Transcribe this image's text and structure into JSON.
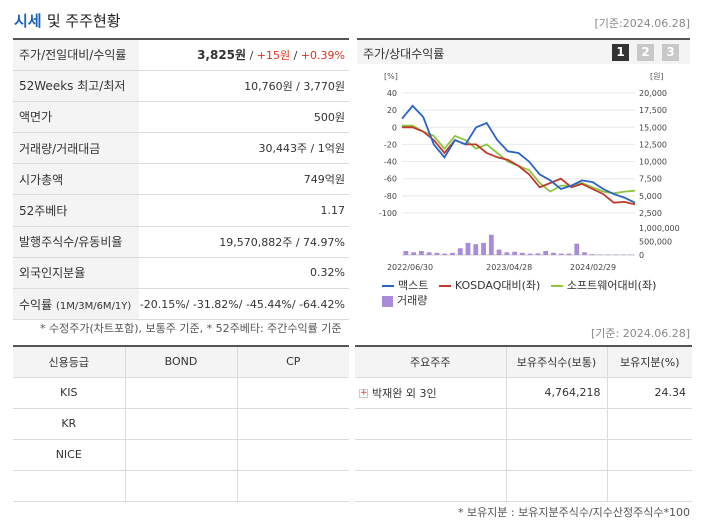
{
  "header": {
    "title": "시세",
    "title_sub": "및 주주현황",
    "base_date": "[기준:2024.06.28]"
  },
  "price": {
    "rows": [
      {
        "label": "주가/전일대비/수익률",
        "price": "3,825원",
        "sep1": " / ",
        "change": "+15원",
        "sep2": " / ",
        "pct": "+0.39%"
      },
      {
        "label": "52Weeks 최고/최저",
        "value": "10,760원 / 3,770원"
      },
      {
        "label": "액면가",
        "value": "500원"
      },
      {
        "label": "거래량/거래대금",
        "value": "30,443주 / 1억원"
      },
      {
        "label": "시가총액",
        "value": "749억원"
      },
      {
        "label": "52주베타",
        "value": "1.17"
      },
      {
        "label": "발행주식수/유동비율",
        "value": "19,570,882주 / 74.97%"
      },
      {
        "label": "외국인지분율",
        "value": "0.32%"
      },
      {
        "label": "수익률",
        "label_small": "(1M/3M/6M/1Y)",
        "value": "-20.15%/ -31.82%/ -45.44%/ -64.42%"
      }
    ],
    "footnote": "* 수정주가(차트포함), 보통주 기준, * 52주베타: 주간수익률 기준"
  },
  "chart": {
    "title": "주가/상대수익률",
    "tabs": [
      "1",
      "2",
      "3"
    ],
    "legend": {
      "series1": "맥스트",
      "series2": "KOSDAQ대비(좌)",
      "series3": "소프트웨어대비(좌)",
      "volume": "거래량"
    },
    "colors": {
      "s1": "#2b62c6",
      "s2": "#c0392b",
      "s3": "#8cc63e",
      "vol": "#a98bd8"
    }
  },
  "chart_data": {
    "type": "line",
    "left_unit": "[%]",
    "right_unit": "[원]",
    "left_ticks": [
      "40",
      "20",
      "0",
      "-20",
      "-40",
      "-60",
      "-80",
      "-100"
    ],
    "right_ticks": [
      "20,000",
      "17,500",
      "15,000",
      "12,500",
      "10,000",
      "7,500",
      "5,000",
      "2,500"
    ],
    "vol_ticks": [
      "1,000,000",
      "500,000",
      "0"
    ],
    "x_ticks": [
      "2022/06/30",
      "2023/04/28",
      "2024/02/29"
    ],
    "ylim_left": [
      -100,
      40
    ],
    "vol_max": 1000000,
    "series": [
      {
        "name": "맥스트",
        "values": [
          10,
          25,
          12,
          -20,
          -35,
          -15,
          -20,
          0,
          5,
          -15,
          -28,
          -30,
          -40,
          -55,
          -62,
          -72,
          -68,
          -62,
          -64,
          -72,
          -78,
          -82,
          -88
        ]
      },
      {
        "name": "KOSDAQ대비(좌)",
        "values": [
          0,
          0,
          -5,
          -15,
          -30,
          -15,
          -20,
          -20,
          -30,
          -35,
          -38,
          -45,
          -55,
          -70,
          -65,
          -60,
          -70,
          -66,
          -72,
          -78,
          -88,
          -87,
          -90
        ]
      },
      {
        "name": "소프트웨어대비(좌)",
        "values": [
          2,
          2,
          -5,
          -10,
          -25,
          -10,
          -15,
          -25,
          -20,
          -30,
          -40,
          -45,
          -50,
          -65,
          -75,
          -68,
          -68,
          -65,
          -70,
          -75,
          -77,
          -75,
          -74
        ]
      }
    ],
    "volume": [
      150000,
      100000,
      150000,
      100000,
      80000,
      50000,
      80000,
      250000,
      450000,
      400000,
      450000,
      750000,
      200000,
      100000,
      120000,
      80000,
      50000,
      60000,
      150000,
      80000,
      50000,
      50000,
      420000,
      100000,
      30000,
      20000,
      20000,
      20000,
      20000,
      20000
    ]
  },
  "credit": {
    "base_date": "[기준: 2024.06.28]",
    "headers": [
      "신용등급",
      "BOND",
      "CP"
    ],
    "rows": [
      {
        "agency": "KIS",
        "bond": "",
        "cp": ""
      },
      {
        "agency": "KR",
        "bond": "",
        "cp": ""
      },
      {
        "agency": "NICE",
        "bond": "",
        "cp": ""
      },
      {
        "agency": "",
        "bond": "",
        "cp": ""
      }
    ]
  },
  "holders": {
    "headers": [
      "주요주주",
      "보유주식수(보통)",
      "보유지분(%)"
    ],
    "rows": [
      {
        "name": "박재완 외 3인",
        "shares": "4,764,218",
        "pct": "24.34"
      },
      {
        "name": "",
        "shares": "",
        "pct": ""
      },
      {
        "name": "",
        "shares": "",
        "pct": ""
      },
      {
        "name": "",
        "shares": "",
        "pct": ""
      }
    ],
    "footnote": "* 보유지분 : 보유지분주식수/지수산정주식수*100"
  }
}
